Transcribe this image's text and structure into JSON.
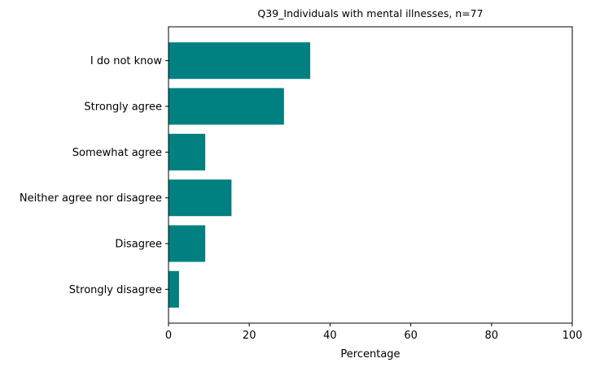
{
  "chart_data": {
    "type": "bar",
    "orientation": "horizontal",
    "title": "Q39_Individuals with mental illnesses, n=77",
    "xlabel": "Percentage",
    "ylabel": "",
    "xlim": [
      0,
      100
    ],
    "xticks": [
      0,
      20,
      40,
      60,
      80,
      100
    ],
    "grid": false,
    "legend": "none",
    "bar_color": "#008080",
    "categories": [
      "Strongly disagree",
      "Disagree",
      "Neither agree nor disagree",
      "Somewhat agree",
      "Strongly agree",
      "I do not know"
    ],
    "values": [
      2.6,
      9.1,
      15.6,
      9.1,
      28.6,
      35.1
    ]
  }
}
